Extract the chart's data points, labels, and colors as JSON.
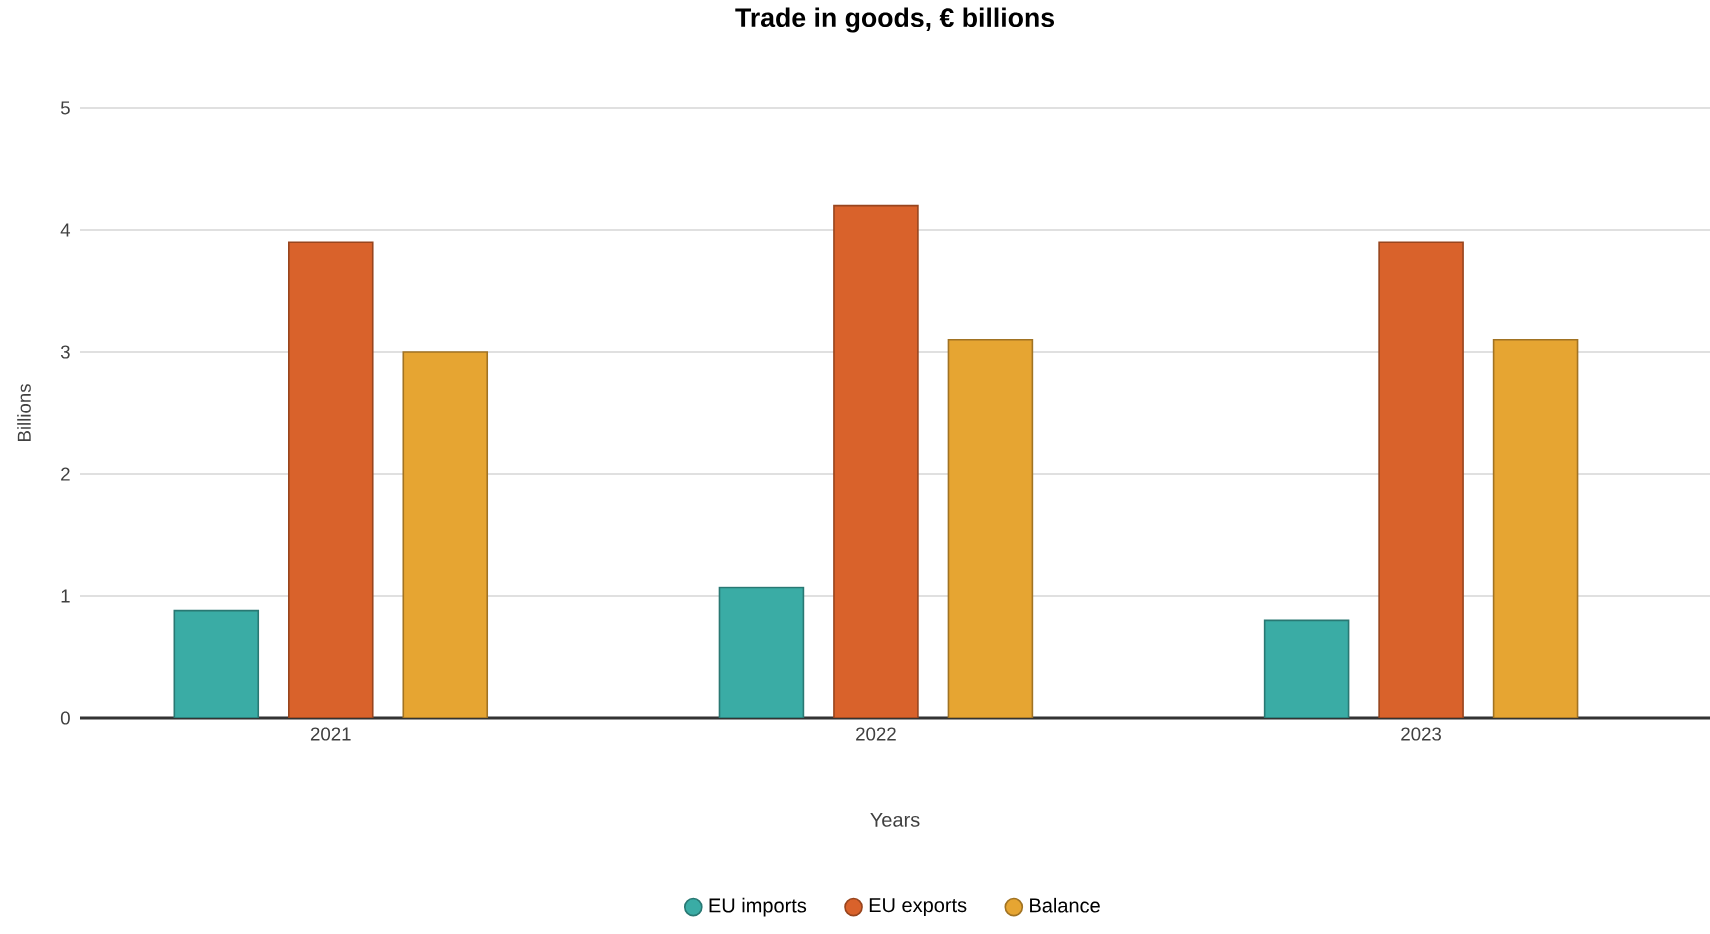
{
  "chart_data": {
    "type": "bar",
    "title": "Trade in goods, € billions",
    "xlabel": "Years",
    "ylabel": "Billions",
    "categories": [
      "2021",
      "2022",
      "2023"
    ],
    "series": [
      {
        "name": "EU imports",
        "color": "#3aaca5",
        "values": [
          0.88,
          1.07,
          0.8
        ]
      },
      {
        "name": "EU exports",
        "color": "#d9622b",
        "values": [
          3.9,
          4.2,
          3.9
        ]
      },
      {
        "name": "Balance",
        "color": "#e6a532",
        "values": [
          3.0,
          3.1,
          3.1
        ]
      }
    ],
    "ylim": [
      0,
      5
    ],
    "yticks": [
      0,
      1,
      2,
      3,
      4,
      5
    ],
    "grid": "y",
    "legend": "bottom"
  }
}
